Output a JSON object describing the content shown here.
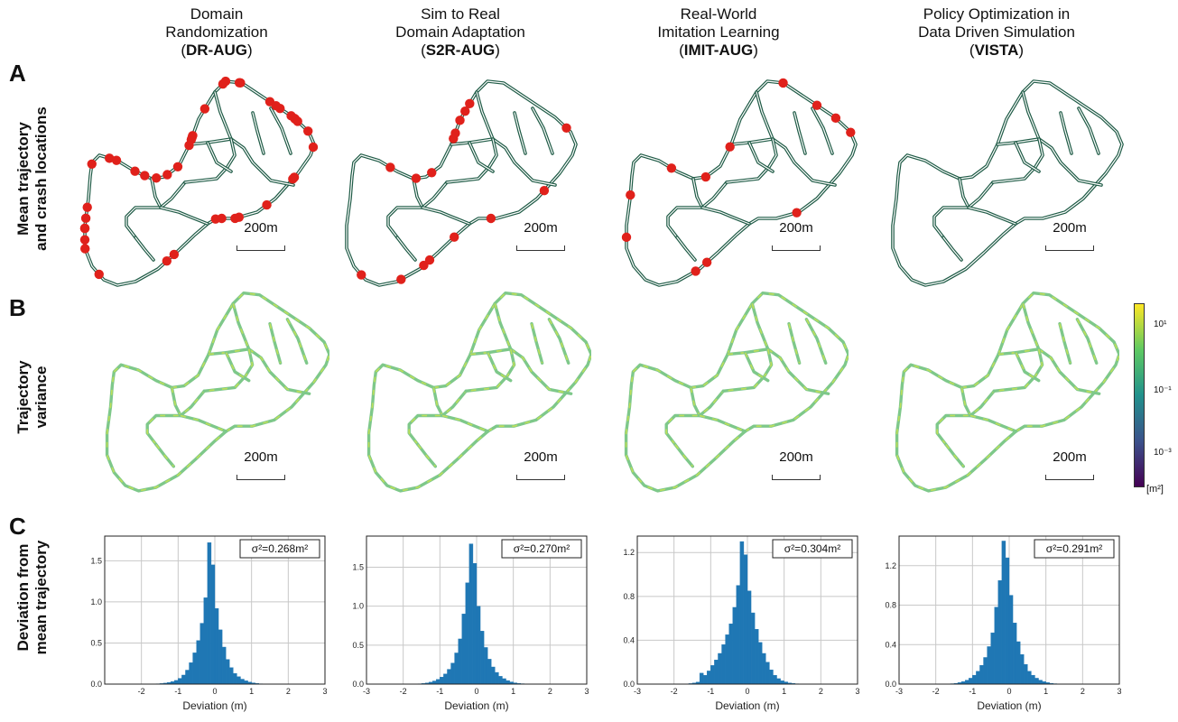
{
  "columns": [
    {
      "title_lines": [
        "Domain",
        "Randomization"
      ],
      "abbr": "DR-AUG"
    },
    {
      "title_lines": [
        "Sim to Real",
        "Domain Adaptation"
      ],
      "abbr": "S2R-AUG"
    },
    {
      "title_lines": [
        "Real-World",
        "Imitation Learning"
      ],
      "abbr": "IMIT-AUG"
    },
    {
      "title_lines": [
        "Policy Optimization in",
        "Data Driven Simulation"
      ],
      "abbr": "VISTA"
    }
  ],
  "rows": [
    {
      "letter": "A",
      "label_lines": [
        "Mean trajectory",
        "and crash locations"
      ]
    },
    {
      "letter": "B",
      "label_lines": [
        "Trajectory",
        "variance"
      ]
    },
    {
      "letter": "C",
      "label_lines": [
        "Deviation from",
        "mean trajectory"
      ]
    }
  ],
  "scale_label": "200m",
  "colorbar": {
    "ticks": [
      "10¹",
      "10⁻¹",
      "10⁻³"
    ],
    "unit": "[m²]",
    "colormap": "viridis"
  },
  "colors": {
    "road": "#1f5b46",
    "crash": "#e0211b",
    "bar": "#1f77b4",
    "grid": "#c8c8c8"
  },
  "crash_counts": [
    42,
    16,
    12,
    0
  ],
  "chart_data": [
    {
      "type": "bar",
      "title": "",
      "xlabel": "Deviation (m)",
      "ylabel": "",
      "annotation": "σ²=0.268m²",
      "xlim": [
        -3,
        3
      ],
      "ylim": [
        0,
        1.8
      ],
      "xticks": [
        -2,
        -1,
        0,
        1,
        2,
        3
      ],
      "yticks": [
        0.5,
        1.0,
        1.5
      ],
      "ytick_labels": [
        "0.5",
        "1.0",
        "1.5"
      ],
      "grid": true,
      "bin_edges_start": -1.6,
      "bin_width": 0.1,
      "values": [
        0.004,
        0.007,
        0.012,
        0.02,
        0.03,
        0.045,
        0.07,
        0.11,
        0.17,
        0.26,
        0.38,
        0.53,
        0.74,
        1.05,
        1.72,
        1.45,
        0.92,
        0.66,
        0.45,
        0.3,
        0.2,
        0.13,
        0.09,
        0.06,
        0.04,
        0.025,
        0.015,
        0.008,
        0.004,
        0.002,
        0.001,
        0.001
      ]
    },
    {
      "type": "bar",
      "title": "",
      "xlabel": "Deviation (m)",
      "ylabel": "",
      "annotation": "σ²=0.270m²",
      "xlim": [
        -3,
        3
      ],
      "ylim": [
        0,
        1.9
      ],
      "xticks": [
        -3,
        -2,
        -1,
        0,
        1,
        2,
        3
      ],
      "yticks": [
        0.5,
        1.0,
        1.5
      ],
      "ytick_labels": [
        "0.5",
        "1.0",
        "1.5"
      ],
      "grid": true,
      "bin_edges_start": -1.6,
      "bin_width": 0.1,
      "values": [
        0.004,
        0.008,
        0.015,
        0.025,
        0.04,
        0.06,
        0.09,
        0.13,
        0.19,
        0.27,
        0.4,
        0.58,
        0.9,
        1.3,
        1.8,
        1.55,
        1.0,
        0.68,
        0.47,
        0.32,
        0.22,
        0.15,
        0.1,
        0.07,
        0.045,
        0.028,
        0.016,
        0.009,
        0.005,
        0.002,
        0.001,
        0.001
      ]
    },
    {
      "type": "bar",
      "title": "",
      "xlabel": "Deviation (m)",
      "ylabel": "",
      "annotation": "σ²=0.304m²",
      "xlim": [
        -3,
        3
      ],
      "ylim": [
        0,
        1.35
      ],
      "xticks": [
        -3,
        -2,
        -1,
        0,
        1,
        2,
        3
      ],
      "yticks": [
        0.4,
        0.8,
        1.2
      ],
      "ytick_labels": [
        "0.4",
        "0.8",
        "1.2"
      ],
      "grid": true,
      "bin_edges_start": -1.6,
      "bin_width": 0.1,
      "values": [
        0.005,
        0.01,
        0.018,
        0.1,
        0.08,
        0.12,
        0.17,
        0.22,
        0.28,
        0.36,
        0.45,
        0.55,
        0.7,
        0.9,
        1.3,
        1.18,
        0.85,
        0.65,
        0.5,
        0.38,
        0.28,
        0.2,
        0.13,
        0.08,
        0.05,
        0.03,
        0.02,
        0.01,
        0.006,
        0.003,
        0.002,
        0.001
      ]
    },
    {
      "type": "bar",
      "title": "",
      "xlabel": "Deviation (m)",
      "ylabel": "",
      "annotation": "σ²=0.291m²",
      "xlim": [
        -3,
        3
      ],
      "ylim": [
        0,
        1.5
      ],
      "xticks": [
        -3,
        -2,
        -1,
        0,
        1,
        2,
        3
      ],
      "yticks": [
        0.4,
        0.8,
        1.2
      ],
      "ytick_labels": [
        "0.4",
        "0.8",
        "1.2"
      ],
      "grid": true,
      "bin_edges_start": -1.6,
      "bin_width": 0.1,
      "values": [
        0.004,
        0.008,
        0.015,
        0.025,
        0.04,
        0.06,
        0.09,
        0.13,
        0.19,
        0.27,
        0.38,
        0.52,
        0.78,
        1.05,
        1.45,
        1.28,
        0.9,
        0.62,
        0.43,
        0.3,
        0.2,
        0.13,
        0.09,
        0.06,
        0.04,
        0.025,
        0.015,
        0.008,
        0.004,
        0.002,
        0.001,
        0.001
      ]
    }
  ]
}
